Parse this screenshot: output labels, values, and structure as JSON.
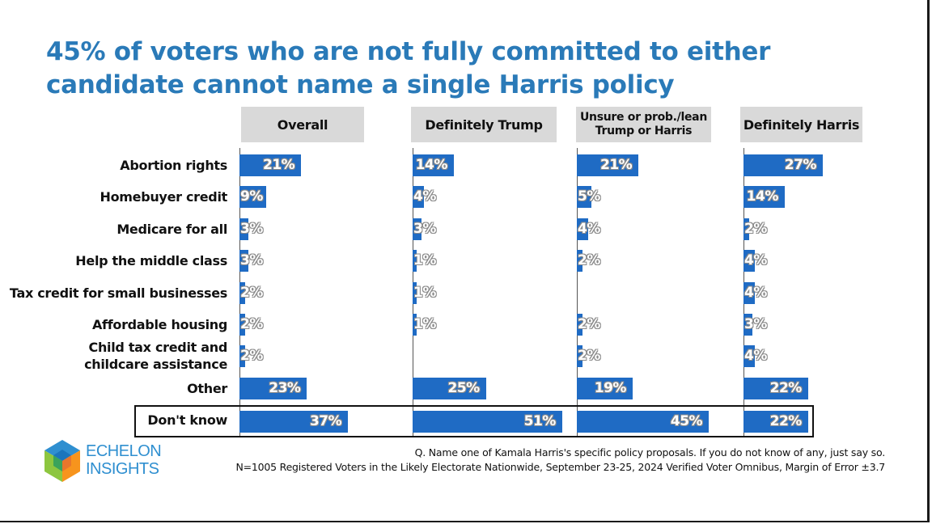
{
  "title": "45% of voters who are not fully committed to either candidate cannot name a single Harris policy",
  "logo": {
    "line1": "ECHELON",
    "line2": "INSIGHTS",
    "colors": [
      "#2f8fd0",
      "#8dc63f",
      "#f7941d",
      "#1b75bc"
    ]
  },
  "footnote": {
    "question": "Q. Name one of Kamala Harris's specific policy proposals. If you do not know of any, just say so.",
    "sample": "N=1005 Registered Voters in the Likely Electorate Nationwide, September 23-25, 2024 Verified Voter Omnibus, Margin of Error ±3.7"
  },
  "colors": {
    "bar": "#1f6bc4",
    "title": "#2a7ab8",
    "header_bg": "#d9d9d9"
  },
  "chart_data": {
    "type": "bar",
    "orientation": "horizontal",
    "categories": [
      "Abortion rights",
      "Homebuyer credit",
      "Medicare for all",
      "Help the middle class",
      "Tax credit for small businesses",
      "Affordable housing",
      "Child tax credit and\nchildcare assistance",
      "Other",
      "Don't know"
    ],
    "unit": "%",
    "series": [
      {
        "name": "Overall",
        "values": [
          21,
          9,
          3,
          3,
          2,
          2,
          2,
          23,
          37
        ]
      },
      {
        "name": "Definitely Trump",
        "values": [
          14,
          4,
          3,
          1,
          1,
          1,
          null,
          25,
          51
        ]
      },
      {
        "name": "Unsure or prob./lean\nTrump or Harris",
        "values": [
          21,
          5,
          4,
          2,
          null,
          2,
          2,
          19,
          45
        ]
      },
      {
        "name": "Definitely Harris",
        "values": [
          27,
          14,
          2,
          4,
          4,
          3,
          4,
          22,
          22
        ]
      }
    ],
    "highlighted_category": "Don't know"
  }
}
